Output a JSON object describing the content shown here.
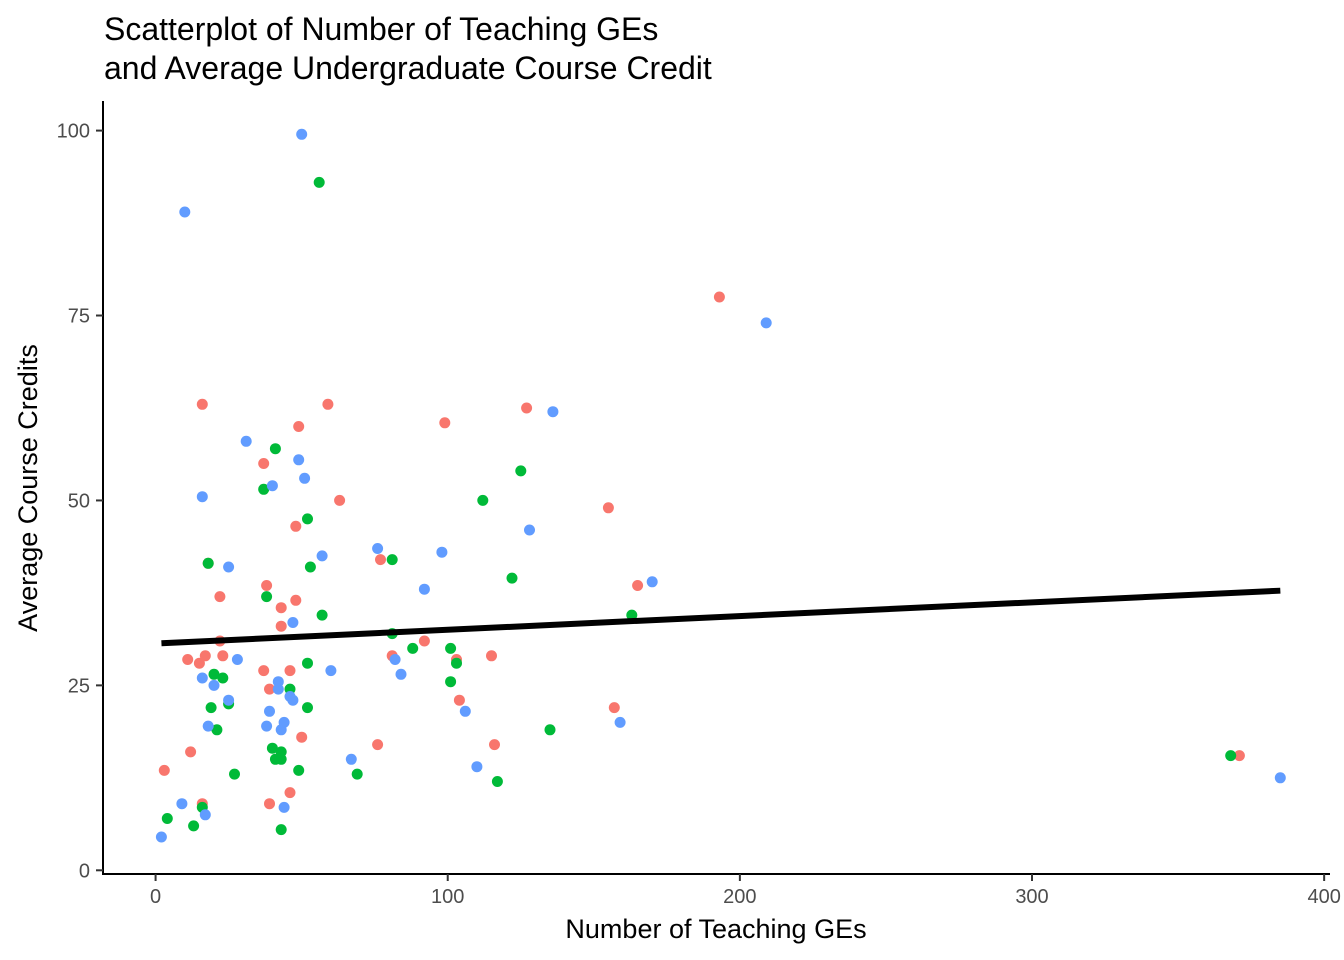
{
  "chart_data": {
    "type": "scatter",
    "title": "Scatterplot of Number of Teaching GEs",
    "subtitle": "and Average Undergraduate Course Credit",
    "xlabel": "Number of Teaching GEs",
    "ylabel": "Average Course Credits",
    "xlim": [
      -18,
      402
    ],
    "ylim": [
      -0.5,
      104
    ],
    "xticks": [
      0,
      100,
      200,
      300,
      400
    ],
    "yticks": [
      0,
      25,
      50,
      75,
      100
    ],
    "grid": false,
    "legend": "none",
    "series": [
      {
        "color": "#F8766D",
        "points": [
          [
            3,
            13.5
          ],
          [
            11,
            28.5
          ],
          [
            12,
            16
          ],
          [
            15,
            28
          ],
          [
            16,
            9
          ],
          [
            16,
            63
          ],
          [
            17,
            29
          ],
          [
            18,
            41.5
          ],
          [
            22,
            37
          ],
          [
            22,
            31
          ],
          [
            23,
            29
          ],
          [
            37,
            55
          ],
          [
            37,
            27
          ],
          [
            38,
            38.5
          ],
          [
            39,
            24.5
          ],
          [
            39,
            9
          ],
          [
            43,
            35.5
          ],
          [
            43,
            33
          ],
          [
            46,
            27
          ],
          [
            46,
            10.5
          ],
          [
            48,
            46.5
          ],
          [
            48,
            36.5
          ],
          [
            49,
            60
          ],
          [
            50,
            18
          ],
          [
            59,
            63
          ],
          [
            63,
            50
          ],
          [
            76,
            17
          ],
          [
            77,
            42
          ],
          [
            81,
            29
          ],
          [
            92,
            31
          ],
          [
            99,
            60.5
          ],
          [
            103,
            28.5
          ],
          [
            104,
            23
          ],
          [
            115,
            29
          ],
          [
            116,
            17
          ],
          [
            127,
            62.5
          ],
          [
            155,
            49
          ],
          [
            157,
            22
          ],
          [
            165,
            38.5
          ],
          [
            193,
            77.5
          ],
          [
            371,
            15.5
          ]
        ]
      },
      {
        "color": "#00BA38",
        "points": [
          [
            4,
            7
          ],
          [
            13,
            6
          ],
          [
            16,
            8.5
          ],
          [
            18,
            41.5
          ],
          [
            19,
            22
          ],
          [
            20,
            26.5
          ],
          [
            21,
            19
          ],
          [
            23,
            26
          ],
          [
            25,
            22.5
          ],
          [
            27,
            13
          ],
          [
            37,
            51.5
          ],
          [
            38,
            37
          ],
          [
            40,
            16.5
          ],
          [
            41,
            57
          ],
          [
            41,
            15
          ],
          [
            43,
            16
          ],
          [
            43,
            15
          ],
          [
            43,
            5.5
          ],
          [
            46,
            24.5
          ],
          [
            49,
            13.5
          ],
          [
            52,
            47.5
          ],
          [
            52,
            28
          ],
          [
            52,
            22
          ],
          [
            53,
            41
          ],
          [
            56,
            93
          ],
          [
            57,
            34.5
          ],
          [
            69,
            13
          ],
          [
            81,
            42
          ],
          [
            81,
            32
          ],
          [
            88,
            30
          ],
          [
            101,
            30
          ],
          [
            101,
            25.5
          ],
          [
            103,
            28
          ],
          [
            112,
            50
          ],
          [
            117,
            12
          ],
          [
            122,
            39.5
          ],
          [
            125,
            54
          ],
          [
            135,
            19
          ],
          [
            163,
            34.5
          ],
          [
            368,
            15.5
          ]
        ]
      },
      {
        "color": "#619CFF",
        "points": [
          [
            2,
            4.5
          ],
          [
            9,
            9
          ],
          [
            10,
            89
          ],
          [
            16,
            26
          ],
          [
            16,
            50.5
          ],
          [
            17,
            7.5
          ],
          [
            18,
            19.5
          ],
          [
            20,
            25
          ],
          [
            25,
            41
          ],
          [
            25,
            23
          ],
          [
            28,
            28.5
          ],
          [
            31,
            58
          ],
          [
            38,
            19.5
          ],
          [
            39,
            21.5
          ],
          [
            40,
            52
          ],
          [
            42,
            25.5
          ],
          [
            42,
            24.5
          ],
          [
            43,
            19
          ],
          [
            44,
            20
          ],
          [
            44,
            8.5
          ],
          [
            46,
            23.5
          ],
          [
            47,
            23
          ],
          [
            47,
            33.5
          ],
          [
            49,
            55.5
          ],
          [
            50,
            99.5
          ],
          [
            51,
            53
          ],
          [
            57,
            42.5
          ],
          [
            60,
            27
          ],
          [
            67,
            15
          ],
          [
            76,
            43.5
          ],
          [
            82,
            28.5
          ],
          [
            84,
            26.5
          ],
          [
            92,
            38
          ],
          [
            98,
            43
          ],
          [
            106,
            21.5
          ],
          [
            110,
            14
          ],
          [
            128,
            46
          ],
          [
            136,
            62
          ],
          [
            159,
            20
          ],
          [
            170,
            39
          ],
          [
            209,
            74
          ],
          [
            385,
            12.5
          ]
        ]
      }
    ],
    "trend_line": {
      "x": [
        2,
        385
      ],
      "y": [
        30.7,
        37.8
      ],
      "color": "#000000"
    }
  }
}
